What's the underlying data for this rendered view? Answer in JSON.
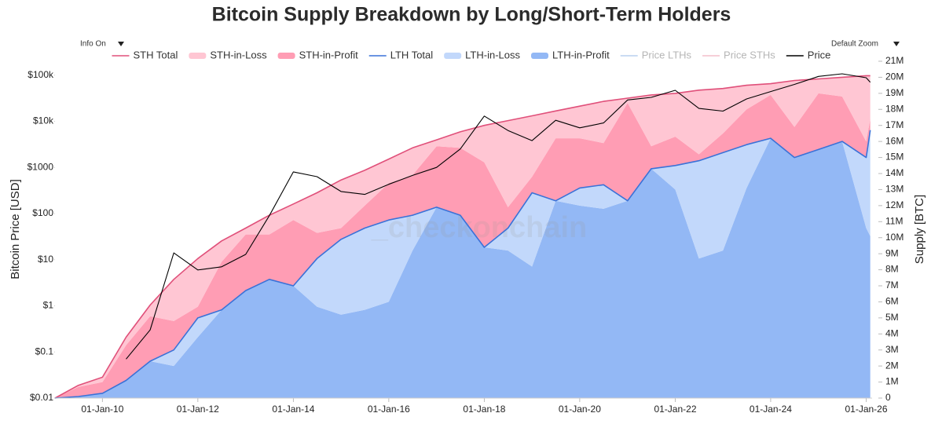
{
  "chart_data": {
    "type": "stacked-area",
    "title": "Bitcoin Supply Breakdown by Long/Short-Term Holders",
    "controls": {
      "info": "Info On",
      "zoom": "Default Zoom"
    },
    "watermark": "_checkonchain",
    "ylabel": "Bitcoin Price [USD]",
    "y2label": "Supply [BTC]",
    "ylog": true,
    "grid": false,
    "legend": "top",
    "x": [
      "2009-01-03",
      "2009-07-01",
      "2010-01-01",
      "2010-07-01",
      "2011-01-01",
      "2011-07-01",
      "2012-01-01",
      "2012-07-01",
      "2013-01-01",
      "2013-07-01",
      "2014-01-01",
      "2014-07-01",
      "2015-01-01",
      "2015-07-01",
      "2016-01-01",
      "2016-07-01",
      "2017-01-01",
      "2017-07-01",
      "2018-01-01",
      "2018-07-01",
      "2019-01-01",
      "2019-07-01",
      "2020-01-01",
      "2020-07-01",
      "2021-01-01",
      "2021-07-01",
      "2022-01-01",
      "2022-07-01",
      "2023-01-01",
      "2023-07-01",
      "2024-01-01",
      "2024-07-01",
      "2025-01-01",
      "2025-07-01",
      "2026-01-01",
      "2026-02-01"
    ],
    "xlim": [
      "2009-01-03",
      "2026-02-15"
    ],
    "xticks": [
      {
        "value": "2010-01-01",
        "label": "01-Jan-10"
      },
      {
        "value": "2012-01-01",
        "label": "01-Jan-12"
      },
      {
        "value": "2014-01-01",
        "label": "01-Jan-14"
      },
      {
        "value": "2016-01-01",
        "label": "01-Jan-16"
      },
      {
        "value": "2018-01-01",
        "label": "01-Jan-18"
      },
      {
        "value": "2020-01-01",
        "label": "01-Jan-20"
      },
      {
        "value": "2022-01-01",
        "label": "01-Jan-22"
      },
      {
        "value": "2024-01-01",
        "label": "01-Jan-24"
      },
      {
        "value": "2026-01-01",
        "label": "01-Jan-26"
      }
    ],
    "ylim": [
      0.01,
      200000
    ],
    "yticks": [
      {
        "value": 0.01,
        "label": "$0.01"
      },
      {
        "value": 0.1,
        "label": "$0.1"
      },
      {
        "value": 1,
        "label": "$1"
      },
      {
        "value": 10,
        "label": "$10"
      },
      {
        "value": 100,
        "label": "$100"
      },
      {
        "value": 1000,
        "label": "$1000"
      },
      {
        "value": 10000,
        "label": "$10k"
      },
      {
        "value": 100000,
        "label": "$100k"
      }
    ],
    "y2lim": [
      0,
      21000000
    ],
    "y2ticks": [
      0,
      {
        "value": 1000000,
        "label": "1M"
      },
      {
        "value": 2000000,
        "label": "2M"
      },
      {
        "value": 3000000,
        "label": "3M"
      },
      {
        "value": 4000000,
        "label": "4M"
      },
      {
        "value": 5000000,
        "label": "5M"
      },
      {
        "value": 6000000,
        "label": "6M"
      },
      {
        "value": 7000000,
        "label": "7M"
      },
      {
        "value": 8000000,
        "label": "8M"
      },
      {
        "value": 9000000,
        "label": "9M"
      },
      {
        "value": 10000000,
        "label": "10M"
      },
      {
        "value": 11000000,
        "label": "11M"
      },
      {
        "value": 12000000,
        "label": "12M"
      },
      {
        "value": 13000000,
        "label": "13M"
      },
      {
        "value": 14000000,
        "label": "14M"
      },
      {
        "value": 15000000,
        "label": "15M"
      },
      {
        "value": 16000000,
        "label": "16M"
      },
      {
        "value": 17000000,
        "label": "17M"
      },
      {
        "value": 18000000,
        "label": "18M"
      },
      {
        "value": 19000000,
        "label": "19M"
      },
      {
        "value": 20000000,
        "label": "20M"
      },
      {
        "value": 21000000,
        "label": "21M"
      }
    ],
    "series": [
      {
        "name": "STH Total",
        "kind": "line",
        "axis": "y2",
        "stacked": true,
        "color": "#e0507a",
        "values": [
          0,
          700000,
          1000000,
          2700000,
          3500000,
          4400000,
          3700000,
          4300000,
          3900000,
          4000000,
          5100000,
          4100000,
          3700000,
          3600000,
          3800000,
          4200000,
          4200000,
          5200000,
          7600000,
          6700000,
          4800000,
          5600000,
          5100000,
          5200000,
          6400000,
          4600000,
          4500000,
          4400000,
          4000000,
          3700000,
          3400000,
          4800000,
          4400000,
          4000000,
          5100000,
          3400000
        ]
      },
      {
        "name": "STH-in-Loss",
        "kind": "area",
        "axis": "y2",
        "color": "#ffc6d3",
        "values": [
          0,
          100000,
          300000,
          500000,
          700000,
          2600000,
          3000000,
          1300000,
          400000,
          1200000,
          1000000,
          2500000,
          3000000,
          2200000,
          1500000,
          1700000,
          400000,
          1000000,
          2300000,
          5400000,
          3800000,
          1700000,
          2000000,
          2600000,
          300000,
          3200000,
          2700000,
          4000000,
          2800000,
          1500000,
          700000,
          2900000,
          900000,
          1200000,
          4100000,
          2700000
        ]
      },
      {
        "name": "STH-in-Profit",
        "kind": "area",
        "axis": "y2",
        "color": "#ff9db4",
        "values": [
          0,
          600000,
          700000,
          2200000,
          2800000,
          1800000,
          700000,
          3000000,
          3500000,
          2800000,
          4100000,
          1600000,
          700000,
          1400000,
          2300000,
          2500000,
          3800000,
          4200000,
          5300000,
          1300000,
          1000000,
          3900000,
          3100000,
          2600000,
          6100000,
          1400000,
          1800000,
          400000,
          1200000,
          2200000,
          2700000,
          1900000,
          3500000,
          2800000,
          1000000,
          700000
        ]
      },
      {
        "name": "LTH Total",
        "kind": "line",
        "axis": "y2",
        "color": "#3a72d8",
        "values": [
          0,
          100000,
          300000,
          1100000,
          2300000,
          3000000,
          5000000,
          5500000,
          6700000,
          7400000,
          7000000,
          8700000,
          9900000,
          10600000,
          11100000,
          11400000,
          11900000,
          11400000,
          9400000,
          10600000,
          12800000,
          12300000,
          13100000,
          13300000,
          12300000,
          14300000,
          14500000,
          14800000,
          15300000,
          15800000,
          16200000,
          15000000,
          15500000,
          16000000,
          15000000,
          16700000
        ]
      },
      {
        "name": "LTH-in-Loss",
        "kind": "area",
        "axis": "y2",
        "color": "#c2d8fb",
        "values": [
          0,
          0,
          0,
          0,
          0,
          1000000,
          1200000,
          0,
          0,
          0,
          0,
          3000000,
          4700000,
          5100000,
          5100000,
          2200000,
          0,
          0,
          0,
          1400000,
          4600000,
          0,
          1100000,
          1500000,
          0,
          0,
          1500000,
          6100000,
          6100000,
          2700000,
          0,
          0,
          0,
          0,
          4400000,
          6600000
        ]
      },
      {
        "name": "LTH-in-Profit",
        "kind": "area",
        "axis": "y2",
        "color": "#93b8f5",
        "values": [
          0,
          100000,
          300000,
          1100000,
          2300000,
          2000000,
          3800000,
          5500000,
          6700000,
          7400000,
          7000000,
          5700000,
          5200000,
          5500000,
          6000000,
          9200000,
          11900000,
          11400000,
          9400000,
          9200000,
          8200000,
          12300000,
          12000000,
          11800000,
          12300000,
          14300000,
          13000000,
          8700000,
          9200000,
          13100000,
          16200000,
          15000000,
          15500000,
          16000000,
          10600000,
          10100000
        ]
      },
      {
        "name": "Price LTHs",
        "kind": "line",
        "visible": false,
        "color": "#b9d0ef"
      },
      {
        "name": "Price STHs",
        "kind": "line",
        "visible": false,
        "color": "#f3bfcc"
      },
      {
        "name": "Price",
        "kind": "line",
        "axis": "y",
        "color": "#000000",
        "values": [
          null,
          null,
          null,
          0.07,
          0.3,
          14,
          6,
          7,
          13,
          90,
          800,
          630,
          300,
          260,
          430,
          670,
          1000,
          2500,
          13000,
          6300,
          3800,
          10500,
          7200,
          9200,
          29000,
          33000,
          47000,
          19000,
          16600,
          30500,
          44000,
          63000,
          94000,
          107000,
          88000,
          70000
        ]
      }
    ]
  }
}
